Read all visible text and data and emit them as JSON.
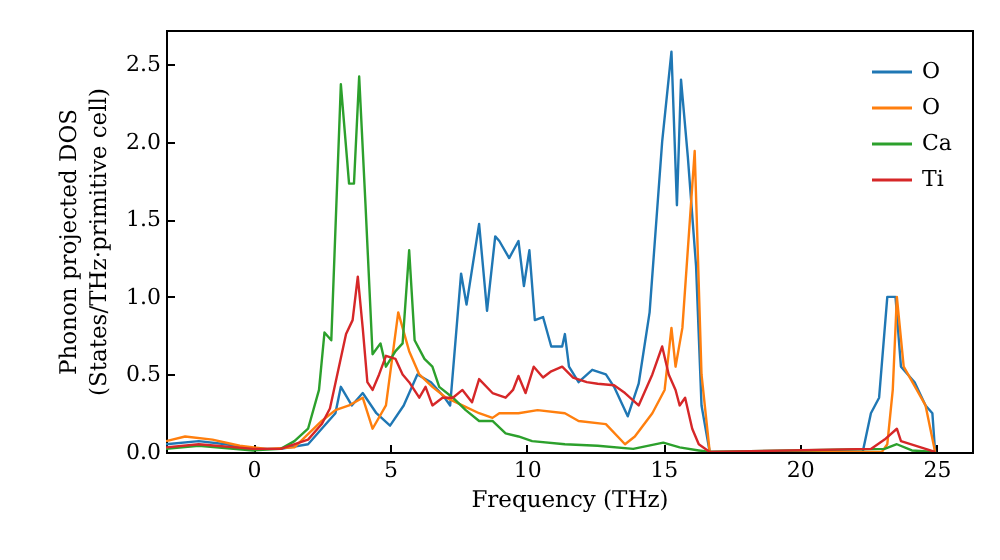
{
  "chart_data": {
    "type": "line",
    "xlabel": "Frequency (THz)",
    "ylabel": "Phonon projected DOS\n(States/THz·primitive cell)",
    "xlim": [
      -3.2,
      26.3
    ],
    "xticks": [
      0,
      5,
      10,
      15,
      20,
      25
    ],
    "ylim": [
      0,
      2.72
    ],
    "yticks": [
      {
        "value": 0,
        "label": "0.0"
      },
      0.5,
      {
        "value": 1,
        "label": "1.0"
      },
      1.5,
      {
        "value": 2,
        "label": "2.0"
      },
      2.5
    ],
    "grid": false,
    "legend": "top right",
    "marker": "none",
    "line_style": "solid",
    "series": [
      {
        "name": "O",
        "color": "#1f77b4",
        "x": [
          -3.2,
          -2,
          -1,
          0,
          1,
          2,
          2.5,
          3,
          3.2,
          3.6,
          4,
          4.5,
          5,
          5.5,
          6,
          6.5,
          7,
          7.2,
          7.6,
          7.8,
          8.26,
          8.55,
          8.85,
          9.0,
          9.36,
          9.7,
          9.9,
          10.1,
          10.3,
          10.6,
          10.9,
          11.3,
          11.4,
          11.55,
          11.9,
          12.4,
          12.9,
          13.2,
          13.7,
          14.1,
          14.5,
          14.96,
          15.3,
          15.5,
          15.65,
          15.9,
          16.2,
          16.4,
          16.7,
          22.3,
          22.6,
          22.9,
          23.2,
          23.5,
          23.7,
          24.2,
          24.6,
          24.85,
          24.95
        ],
        "values": [
          0.05,
          0.07,
          0.05,
          0.02,
          0.02,
          0.05,
          0.15,
          0.25,
          0.42,
          0.3,
          0.38,
          0.25,
          0.17,
          0.3,
          0.5,
          0.45,
          0.35,
          0.3,
          1.15,
          0.95,
          1.47,
          0.91,
          1.39,
          1.36,
          1.25,
          1.36,
          1.07,
          1.3,
          0.85,
          0.87,
          0.68,
          0.68,
          0.76,
          0.55,
          0.45,
          0.53,
          0.5,
          0.42,
          0.23,
          0.44,
          0.9,
          2.0,
          2.58,
          1.59,
          2.4,
          1.9,
          1.2,
          0.3,
          0,
          0,
          0.25,
          0.35,
          1.0,
          1.0,
          0.55,
          0.45,
          0.3,
          0.25,
          0
        ]
      },
      {
        "name": "O",
        "color": "#ff7f0e",
        "x": [
          -3.2,
          -2.5,
          -1.5,
          -0.5,
          0.5,
          1.5,
          2.5,
          3,
          3.5,
          4,
          4.36,
          4.85,
          5.3,
          5.7,
          6.07,
          6.55,
          7.05,
          7.65,
          8.26,
          8.75,
          9.0,
          9.7,
          10.4,
          11.4,
          11.9,
          12.9,
          13.6,
          13.96,
          14.6,
          15.05,
          15.3,
          15.45,
          15.7,
          16.15,
          16.4,
          16.7,
          23.0,
          23.2,
          23.4,
          23.55,
          23.8,
          24.6,
          24.95
        ],
        "values": [
          0.07,
          0.1,
          0.08,
          0.04,
          0.02,
          0.03,
          0.2,
          0.27,
          0.3,
          0.35,
          0.15,
          0.3,
          0.9,
          0.65,
          0.5,
          0.42,
          0.35,
          0.3,
          0.25,
          0.22,
          0.25,
          0.25,
          0.27,
          0.25,
          0.2,
          0.18,
          0.05,
          0.1,
          0.25,
          0.4,
          0.8,
          0.55,
          0.8,
          1.94,
          0.5,
          0,
          0,
          0.05,
          0.4,
          1.0,
          0.55,
          0.3,
          0
        ]
      },
      {
        "name": "Ca",
        "color": "#2ca02c",
        "x": [
          -3.2,
          -2,
          0,
          1,
          1.5,
          2,
          2.4,
          2.6,
          2.85,
          3.2,
          3.5,
          3.68,
          3.87,
          4.1,
          4.36,
          4.65,
          4.85,
          5.2,
          5.46,
          5.7,
          5.9,
          6.26,
          6.55,
          6.8,
          7.3,
          7.77,
          8.26,
          8.75,
          9.23,
          9.7,
          10.2,
          11.4,
          12.6,
          13.9,
          15.0,
          15.6,
          16.3,
          16.7,
          23.1,
          23.55,
          24.1,
          24.95
        ],
        "values": [
          0.02,
          0.04,
          0.01,
          0.02,
          0.07,
          0.15,
          0.4,
          0.77,
          0.72,
          2.37,
          1.73,
          1.73,
          2.42,
          1.6,
          0.63,
          0.7,
          0.55,
          0.65,
          0.7,
          1.3,
          0.72,
          0.6,
          0.55,
          0.42,
          0.35,
          0.27,
          0.2,
          0.2,
          0.12,
          0.1,
          0.07,
          0.05,
          0.04,
          0.02,
          0.06,
          0.03,
          0.01,
          0,
          0.02,
          0.05,
          0.01,
          0
        ]
      },
      {
        "name": "Ti",
        "color": "#d62728",
        "x": [
          -3.2,
          -2,
          0,
          1,
          2,
          2.5,
          2.8,
          3.39,
          3.63,
          3.82,
          4.0,
          4.17,
          4.36,
          4.6,
          4.85,
          5.2,
          5.46,
          5.7,
          6.07,
          6.3,
          6.55,
          6.92,
          7.3,
          7.65,
          8.0,
          8.26,
          8.75,
          9.23,
          9.5,
          9.7,
          9.96,
          10.26,
          10.6,
          10.9,
          11.3,
          11.7,
          12.2,
          12.6,
          13.2,
          13.6,
          14.1,
          14.6,
          14.96,
          15.2,
          15.45,
          15.6,
          15.8,
          16.06,
          16.3,
          16.7,
          22.6,
          23.1,
          23.55,
          23.7,
          24.6,
          24.95
        ],
        "values": [
          0.03,
          0.05,
          0.02,
          0.02,
          0.08,
          0.18,
          0.28,
          0.76,
          0.85,
          1.13,
          0.8,
          0.45,
          0.4,
          0.5,
          0.62,
          0.6,
          0.5,
          0.45,
          0.35,
          0.42,
          0.3,
          0.35,
          0.35,
          0.4,
          0.32,
          0.47,
          0.38,
          0.35,
          0.4,
          0.49,
          0.38,
          0.55,
          0.48,
          0.52,
          0.55,
          0.48,
          0.45,
          0.44,
          0.43,
          0.38,
          0.3,
          0.5,
          0.68,
          0.5,
          0.4,
          0.3,
          0.35,
          0.15,
          0.05,
          0,
          0.02,
          0.08,
          0.15,
          0.07,
          0.02,
          0
        ]
      }
    ]
  }
}
